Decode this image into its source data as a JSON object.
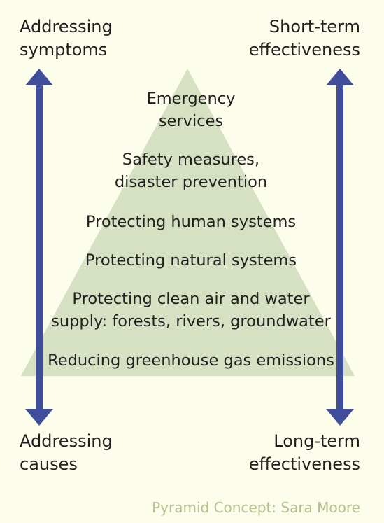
{
  "colors": {
    "background": "#fdfdec",
    "pyramid_fill": "#d5e1c2",
    "arrow": "#3f4d9b",
    "text": "#231f20",
    "credit": "#b5c08b"
  },
  "corners": {
    "top_left": [
      "Addressing",
      "symptoms"
    ],
    "top_right": [
      "Short-term",
      "effectiveness"
    ],
    "bottom_left": [
      "Addressing",
      "causes"
    ],
    "bottom_right": [
      "Long-term",
      "effectiveness"
    ]
  },
  "pyramid_levels": [
    [
      "Emergency",
      "services"
    ],
    [
      "Safety measures,",
      "disaster prevention"
    ],
    [
      "Protecting human systems"
    ],
    [
      "Protecting natural systems"
    ],
    [
      "Protecting clean air and water",
      "supply: forests, rivers, groundwater"
    ],
    [
      "Reducing greenhouse gas emissions"
    ]
  ],
  "credit": "Pyramid Concept: Sara Moore"
}
